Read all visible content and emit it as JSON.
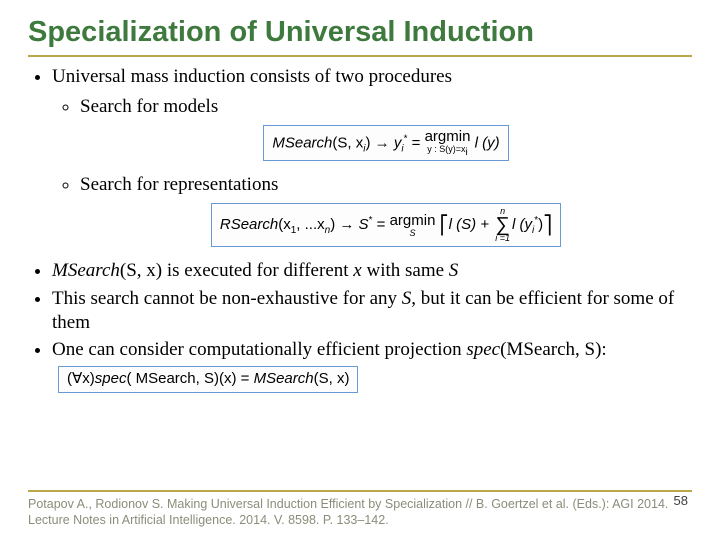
{
  "title": "Specialization of Universal Induction",
  "bullets": {
    "b1": "Universal mass induction consists of two procedures",
    "b1a": "Search for models",
    "b1b": "Search for representations",
    "b2_pre": "MSearch",
    "b2_mid": "(S, x)",
    "b2_post": "  is executed for different ",
    "b2_x": "x",
    "b2_with": " with same ",
    "b2_S": "S",
    "b3": "This search cannot be non-exhaustive for any ",
    "b3_S": "S",
    "b3_post": ", but it can be efficient for some of them",
    "b4": "One can consider computationally efficient projection ",
    "b4_spec": "spec",
    "b4_args": "(MSearch, S)",
    "b4_colon": ":"
  },
  "formula1": {
    "lhs": "MSearch",
    "args": "(S, x",
    "sub_i": "i",
    "close": ")",
    "arrow": " → ",
    "y": "y",
    "star": "*",
    "eq": " = ",
    "op": "argmin",
    "under": "y : S(y)=x",
    "under_sub": "i",
    "rhs": "l (y)"
  },
  "formula2": {
    "lhs": "RSearch",
    "args": "(x",
    "one": "1",
    "dots": ", ...x",
    "n": "n",
    "close": ")",
    "arrow": " → ",
    "Sstar": "S",
    "star": "*",
    "eq": " = ",
    "op": "argmin",
    "under": "S",
    "bracket_l": "[",
    "lS": "l (S) + ",
    "sum_top": "n",
    "sum_bot": "i =1",
    "ly": "l (y",
    "i": "i",
    "ystar": "*",
    "rparen": ")",
    "bracket_r": "]"
  },
  "formula3": {
    "forall": "(∀x)",
    "spec": "spec",
    "args1": "( MSearch, S)",
    "x": "(x)",
    "eq": " = ",
    "ms": "MSearch",
    "args2": "(S, x)"
  },
  "footer": "Potapov A., Rodionov S. Making Universal Induction Efficient by Specialization // B. Goertzel et al. (Eds.): AGI 2014. Lecture Notes in Artificial Intelligence. 2014. V. 8598. P. 133–142.",
  "page": "58"
}
